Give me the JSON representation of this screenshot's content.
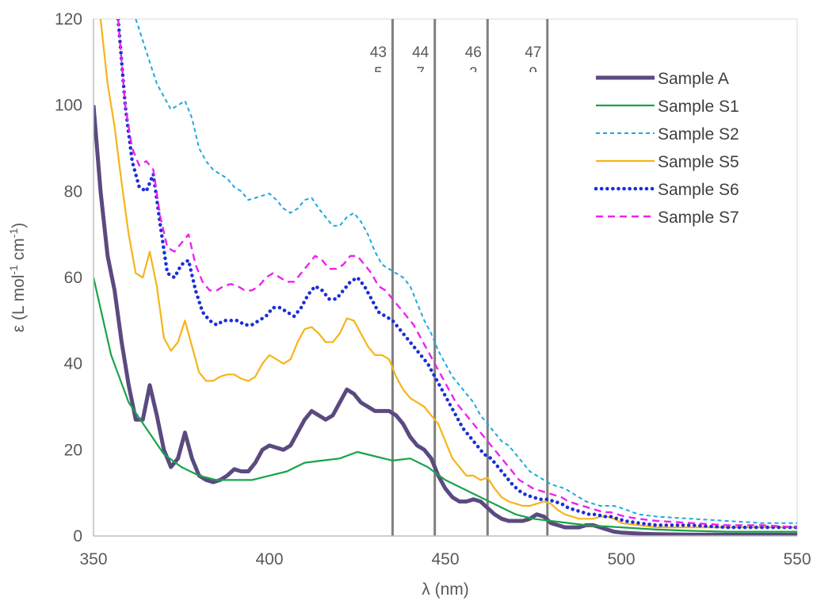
{
  "chart_data": {
    "type": "line",
    "title": "",
    "xlabel": "λ (nm)",
    "ylabel": "ε (L mol-1 cm-1)",
    "ylabel_parts": {
      "base": "ε (L mol",
      "sup1": "-1",
      "mid": " cm",
      "sup2": "-1",
      "end": ")"
    },
    "xlim": [
      350,
      550
    ],
    "ylim": [
      0,
      120
    ],
    "xticks": [
      350,
      400,
      450,
      500,
      550
    ],
    "yticks": [
      0,
      20,
      40,
      60,
      80,
      100,
      120
    ],
    "grid": false,
    "legend_position": "top-right",
    "vertical_markers": [
      {
        "x": 435,
        "label_top": "43",
        "label_bottom": "5"
      },
      {
        "x": 447,
        "label_top": "44",
        "label_bottom": "7"
      },
      {
        "x": 462,
        "label_top": "46",
        "label_bottom": "2"
      },
      {
        "x": 479,
        "label_top": "47",
        "label_bottom": "9"
      }
    ],
    "series": [
      {
        "name": "Sample A",
        "color": "#5b4a7f",
        "style": "solid-thick",
        "x": [
          350,
          352,
          354,
          356,
          358,
          360,
          362,
          364,
          366,
          368,
          370,
          372,
          374,
          376,
          378,
          380,
          382,
          384,
          386,
          388,
          390,
          392,
          394,
          396,
          398,
          400,
          402,
          404,
          406,
          408,
          410,
          412,
          414,
          416,
          418,
          420,
          422,
          424,
          426,
          428,
          430,
          432,
          434,
          436,
          438,
          440,
          442,
          444,
          446,
          448,
          450,
          452,
          454,
          456,
          458,
          460,
          462,
          464,
          466,
          468,
          470,
          472,
          474,
          476,
          478,
          480,
          482,
          484,
          486,
          488,
          490,
          492,
          494,
          496,
          498,
          500,
          502,
          504,
          506,
          510,
          520,
          530,
          540,
          550
        ],
        "y": [
          100,
          80,
          65,
          57,
          45,
          35,
          27,
          27,
          35,
          28,
          20,
          16,
          18,
          24,
          18,
          14,
          13,
          12.5,
          13,
          14,
          15.5,
          15,
          15,
          17,
          20,
          21,
          20.5,
          20,
          21,
          24,
          27,
          29,
          28,
          27,
          28,
          31,
          34,
          33,
          31,
          30,
          29,
          29,
          29,
          28,
          26,
          23,
          21,
          20,
          18,
          14,
          11,
          9,
          8,
          8,
          8.5,
          8,
          6.5,
          5,
          4,
          3.5,
          3.5,
          3.5,
          4,
          5,
          4.5,
          3,
          2.5,
          2,
          2,
          2,
          2.5,
          2.5,
          2,
          1.5,
          1,
          0.8,
          0.7,
          0.6,
          0.5,
          0.4,
          0.3,
          0.3,
          0.3,
          0.3
        ]
      },
      {
        "name": "Sample S1",
        "color": "#1aa34a",
        "style": "solid",
        "x": [
          350,
          355,
          360,
          365,
          370,
          375,
          380,
          385,
          390,
          395,
          400,
          405,
          410,
          415,
          420,
          425,
          430,
          435,
          440,
          445,
          450,
          455,
          460,
          465,
          470,
          475,
          480,
          490,
          500,
          510,
          520,
          530,
          540,
          550
        ],
        "y": [
          60,
          42,
          31,
          25,
          19,
          16,
          14,
          13,
          13,
          13,
          14,
          15,
          17,
          17.5,
          18,
          19.5,
          18.5,
          17.5,
          18,
          16,
          13,
          11,
          9,
          7,
          5,
          4,
          3.5,
          2.5,
          2,
          1.5,
          1.2,
          1,
          1,
          1
        ]
      },
      {
        "name": "Sample S2",
        "color": "#1ba9e0",
        "style": "dashed-short",
        "x": [
          362,
          364,
          366,
          368,
          370,
          372,
          374,
          376,
          378,
          380,
          382,
          384,
          386,
          388,
          390,
          392,
          394,
          396,
          398,
          400,
          402,
          404,
          406,
          408,
          410,
          412,
          414,
          416,
          418,
          420,
          422,
          424,
          426,
          428,
          430,
          432,
          434,
          436,
          438,
          440,
          442,
          444,
          446,
          448,
          450,
          452,
          454,
          456,
          458,
          460,
          462,
          464,
          466,
          468,
          470,
          472,
          474,
          476,
          478,
          480,
          482,
          484,
          486,
          488,
          490,
          492,
          494,
          496,
          498,
          500,
          505,
          510,
          520,
          530,
          540,
          550
        ],
        "y": [
          120,
          115,
          110,
          105,
          102,
          99,
          100,
          101,
          97,
          90,
          87,
          85,
          84,
          83,
          81,
          80,
          78,
          78.5,
          79,
          79.5,
          78,
          76,
          75,
          76,
          78,
          78.5,
          76,
          74,
          72,
          72,
          74,
          75,
          73,
          70,
          66,
          63,
          62,
          61,
          60,
          58,
          54,
          50,
          47,
          43,
          40,
          37,
          35,
          33,
          31,
          28,
          26,
          24,
          22,
          21,
          19,
          17,
          15,
          14,
          13,
          12,
          11.5,
          11,
          10,
          9,
          8,
          7.5,
          7,
          7,
          7,
          6.5,
          5,
          4.5,
          4,
          3.5,
          3,
          3
        ]
      },
      {
        "name": "Sample S5",
        "color": "#f6b419",
        "style": "solid",
        "x": [
          352,
          354,
          356,
          358,
          360,
          362,
          364,
          366,
          368,
          370,
          372,
          374,
          376,
          378,
          380,
          382,
          384,
          386,
          388,
          390,
          392,
          394,
          396,
          398,
          400,
          402,
          404,
          406,
          408,
          410,
          412,
          414,
          416,
          418,
          420,
          422,
          424,
          426,
          428,
          430,
          432,
          434,
          436,
          438,
          440,
          442,
          444,
          446,
          448,
          450,
          452,
          454,
          456,
          458,
          460,
          462,
          464,
          466,
          468,
          470,
          472,
          474,
          476,
          478,
          480,
          482,
          484,
          486,
          488,
          490,
          492,
          494,
          496,
          498,
          500,
          505,
          510,
          520,
          530,
          540,
          550
        ],
        "y": [
          120,
          105,
          95,
          82,
          70,
          61,
          60,
          66,
          58,
          46,
          43,
          45,
          50,
          44,
          38,
          36,
          36,
          37,
          37.5,
          37.5,
          36.5,
          36,
          37,
          40,
          42,
          41,
          40,
          41,
          45,
          48,
          48.5,
          47,
          45,
          45,
          47,
          50.5,
          50,
          47,
          44,
          42,
          42,
          41,
          37,
          34,
          32,
          31,
          30,
          28,
          26,
          22,
          18,
          16,
          14,
          14,
          13,
          13.5,
          11,
          9,
          8,
          7.5,
          7,
          7,
          7.5,
          8,
          7.5,
          6,
          5,
          4.5,
          4,
          4,
          4,
          4.5,
          4.5,
          4,
          3,
          2.5,
          2,
          2,
          2,
          2,
          2
        ]
      },
      {
        "name": "Sample S6",
        "color": "#1b2fd6",
        "style": "dotted",
        "x": [
          357,
          359,
          361,
          363,
          365,
          367,
          369,
          371,
          373,
          375,
          377,
          379,
          381,
          383,
          385,
          387,
          389,
          391,
          393,
          395,
          397,
          399,
          401,
          403,
          405,
          407,
          409,
          411,
          413,
          415,
          417,
          419,
          421,
          423,
          425,
          427,
          429,
          431,
          433,
          435,
          437,
          439,
          441,
          443,
          445,
          447,
          449,
          451,
          453,
          455,
          457,
          459,
          461,
          463,
          465,
          467,
          469,
          471,
          473,
          475,
          477,
          479,
          481,
          483,
          485,
          487,
          489,
          491,
          493,
          495,
          497,
          499,
          501,
          505,
          510,
          520,
          530,
          540,
          550
        ],
        "y": [
          120,
          100,
          87,
          81,
          80,
          84,
          72,
          61,
          60,
          63,
          64,
          57,
          52,
          50,
          49,
          50,
          50,
          50,
          49,
          49,
          50,
          51,
          53,
          53,
          52,
          51,
          53,
          56,
          58,
          57,
          55,
          55,
          57,
          59,
          60,
          58,
          55,
          52,
          51,
          50,
          48,
          46,
          44,
          42,
          40,
          37,
          34,
          31,
          28,
          25,
          23,
          21,
          19,
          18,
          16,
          14,
          12,
          10.5,
          9.5,
          9,
          8.5,
          8.5,
          8,
          7.5,
          6.5,
          6,
          5.5,
          5,
          5,
          4.5,
          4.5,
          4,
          3.5,
          3,
          2.5,
          2.5,
          2,
          2,
          2
        ]
      },
      {
        "name": "Sample S7",
        "color": "#ee22ee",
        "style": "dashed",
        "x": [
          357,
          359,
          361,
          363,
          365,
          367,
          369,
          371,
          373,
          375,
          377,
          379,
          381,
          383,
          385,
          387,
          389,
          391,
          393,
          395,
          397,
          399,
          401,
          403,
          405,
          407,
          409,
          411,
          413,
          415,
          417,
          419,
          421,
          423,
          425,
          427,
          429,
          431,
          433,
          435,
          437,
          439,
          441,
          443,
          445,
          447,
          449,
          451,
          453,
          455,
          457,
          459,
          461,
          463,
          465,
          467,
          469,
          471,
          473,
          475,
          477,
          479,
          481,
          483,
          485,
          487,
          489,
          491,
          493,
          495,
          497,
          499,
          501,
          505,
          510,
          520,
          530,
          540,
          550
        ],
        "y": [
          120,
          100,
          90,
          86,
          87,
          85,
          74,
          67,
          66,
          68,
          70,
          63,
          59,
          57,
          57,
          58,
          58.5,
          58,
          57,
          57,
          58,
          60,
          61,
          60,
          59,
          59,
          61,
          63,
          65,
          64,
          62,
          62,
          63,
          65,
          65,
          63,
          61,
          58,
          57,
          55,
          53,
          51,
          49,
          46,
          43,
          40,
          37,
          34,
          31,
          29,
          27,
          25,
          23,
          21,
          19,
          17,
          15,
          13,
          12,
          11,
          10.5,
          10,
          9.5,
          9,
          8,
          7.5,
          7,
          6.5,
          6,
          5.5,
          5.5,
          5,
          4.5,
          4,
          3.5,
          3,
          2.5,
          2.5,
          2
        ]
      }
    ]
  }
}
